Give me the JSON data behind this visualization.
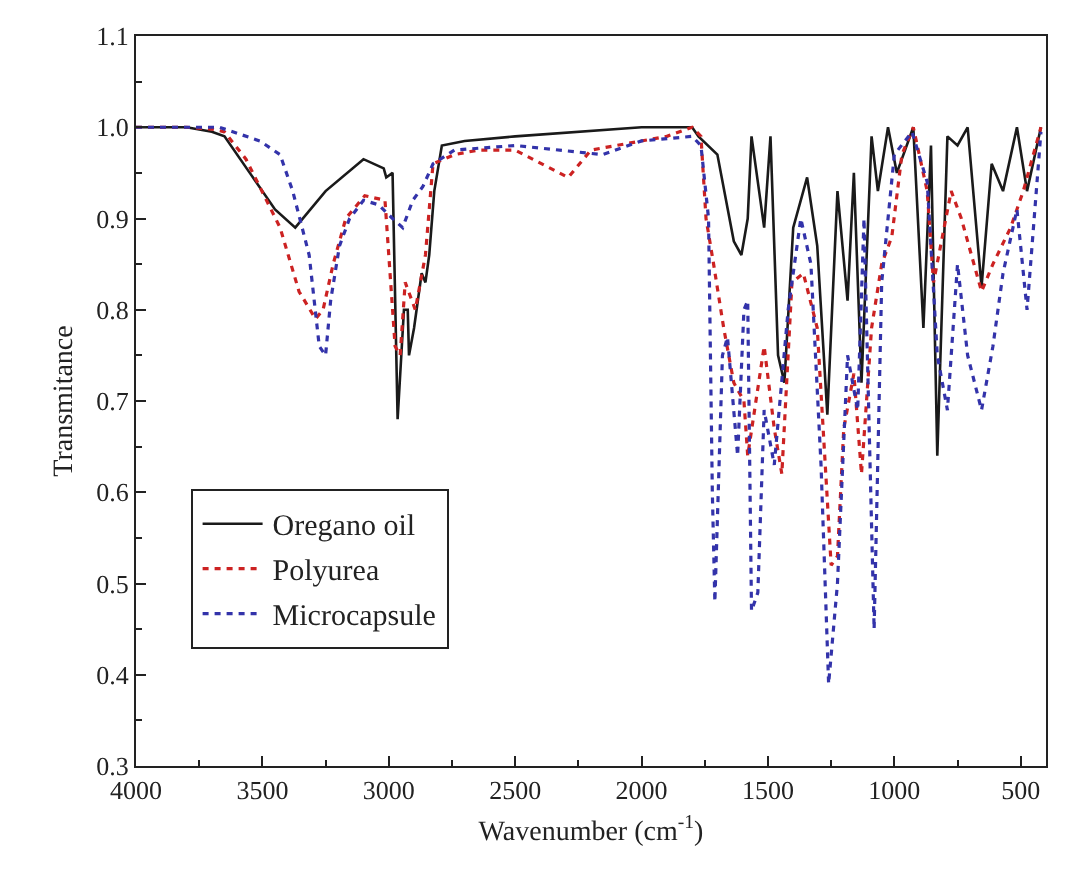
{
  "chart_data": {
    "type": "line",
    "xlabel": "Wavenumber (cm$^{-1}$)",
    "ylabel": "Transmitance",
    "xlim": [
      4000,
      400
    ],
    "xticks": [
      4000,
      3500,
      3000,
      2500,
      2000,
      1500,
      1000,
      500
    ],
    "ylim": [
      0.3,
      1.1
    ],
    "yticks": [
      0.3,
      0.4,
      0.5,
      0.6,
      0.7,
      0.8,
      0.9,
      {
        "value": 1,
        "label": "1.0"
      },
      1.1
    ],
    "grid": false,
    "legend": "bottom left",
    "marker": "none",
    "series": [
      {
        "name": "Oregano oil",
        "color": "#1a1a1a",
        "line_style": "solid",
        "x": [
          4000,
          3800,
          3700,
          3650,
          3550,
          3450,
          3370,
          3250,
          3100,
          3020,
          3010,
          2985,
          2965,
          2940,
          2925,
          2920,
          2900,
          2870,
          2855,
          2840,
          2820,
          2790,
          2700,
          2500,
          2000,
          1800,
          1775,
          1700,
          1635,
          1605,
          1580,
          1565,
          1515,
          1490,
          1460,
          1435,
          1400,
          1345,
          1305,
          1265,
          1225,
          1185,
          1160,
          1130,
          1090,
          1065,
          1025,
          990,
          925,
          885,
          855,
          830,
          790,
          750,
          710,
          655,
          615,
          570,
          515,
          475,
          420
        ],
        "values": [
          1.0,
          1.0,
          0.995,
          0.99,
          0.95,
          0.91,
          0.89,
          0.93,
          0.965,
          0.955,
          0.945,
          0.95,
          0.68,
          0.8,
          0.8,
          0.75,
          0.78,
          0.84,
          0.83,
          0.86,
          0.93,
          0.98,
          0.985,
          0.99,
          1.0,
          1.0,
          0.99,
          0.97,
          0.875,
          0.86,
          0.9,
          0.99,
          0.89,
          0.99,
          0.75,
          0.72,
          0.89,
          0.945,
          0.87,
          0.685,
          0.93,
          0.81,
          0.95,
          0.72,
          0.99,
          0.93,
          1.0,
          0.95,
          1.0,
          0.78,
          0.98,
          0.64,
          0.99,
          0.98,
          1.0,
          0.825,
          0.96,
          0.93,
          1.0,
          0.93,
          1.0
        ]
      },
      {
        "name": "Polyurea",
        "color": "#cc2222",
        "line_style": "dotted",
        "x": [
          4000,
          3800,
          3700,
          3650,
          3565,
          3430,
          3355,
          3290,
          3260,
          3220,
          3170,
          3095,
          3015,
          2975,
          2955,
          2935,
          2895,
          2855,
          2825,
          2740,
          2645,
          2500,
          2290,
          2200,
          1900,
          1800,
          1765,
          1745,
          1715,
          1675,
          1635,
          1595,
          1580,
          1515,
          1475,
          1445,
          1405,
          1360,
          1305,
          1250,
          1225,
          1200,
          1160,
          1130,
          1090,
          1050,
          1010,
          970,
          925,
          870,
          845,
          775,
          735,
          655,
          610,
          540,
          490,
          420
        ],
        "values": [
          1.0,
          1.0,
          0.998,
          0.995,
          0.965,
          0.89,
          0.82,
          0.79,
          0.8,
          0.85,
          0.9,
          0.925,
          0.92,
          0.76,
          0.75,
          0.83,
          0.8,
          0.86,
          0.96,
          0.97,
          0.975,
          0.975,
          0.945,
          0.975,
          0.99,
          1.0,
          0.99,
          0.9,
          0.85,
          0.78,
          0.72,
          0.7,
          0.64,
          0.76,
          0.67,
          0.62,
          0.83,
          0.84,
          0.78,
          0.52,
          0.53,
          0.67,
          0.73,
          0.62,
          0.78,
          0.85,
          0.88,
          0.97,
          1.0,
          0.93,
          0.83,
          0.93,
          0.9,
          0.82,
          0.85,
          0.89,
          0.93,
          1.0
        ]
      },
      {
        "name": "Microcapsule",
        "color": "#3333aa",
        "line_style": "dotted",
        "x": [
          4000,
          3800,
          3670,
          3510,
          3430,
          3380,
          3315,
          3275,
          3250,
          3230,
          3195,
          3155,
          3100,
          3040,
          2985,
          2945,
          2905,
          2865,
          2825,
          2740,
          2500,
          2155,
          2000,
          1800,
          1765,
          1735,
          1720,
          1710,
          1680,
          1660,
          1620,
          1595,
          1580,
          1565,
          1540,
          1515,
          1475,
          1420,
          1370,
          1330,
          1290,
          1260,
          1225,
          1185,
          1145,
          1120,
          1080,
          1050,
          1000,
          930,
          870,
          830,
          790,
          750,
          710,
          655,
          610,
          570,
          515,
          475,
          420
        ],
        "values": [
          1.0,
          1.0,
          1.0,
          0.985,
          0.97,
          0.93,
          0.86,
          0.76,
          0.75,
          0.81,
          0.87,
          0.9,
          0.92,
          0.915,
          0.9,
          0.89,
          0.92,
          0.935,
          0.96,
          0.975,
          0.98,
          0.97,
          0.985,
          0.99,
          0.98,
          0.9,
          0.6,
          0.48,
          0.75,
          0.77,
          0.64,
          0.8,
          0.81,
          0.47,
          0.49,
          0.69,
          0.63,
          0.8,
          0.9,
          0.85,
          0.63,
          0.39,
          0.5,
          0.75,
          0.69,
          0.9,
          0.45,
          0.83,
          0.97,
          0.995,
          0.94,
          0.75,
          0.69,
          0.85,
          0.75,
          0.69,
          0.76,
          0.84,
          0.91,
          0.8,
          0.995
        ]
      }
    ]
  }
}
